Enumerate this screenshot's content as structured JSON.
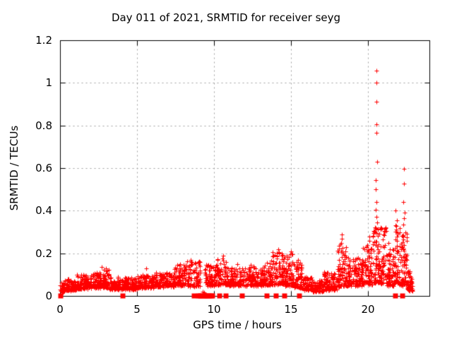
{
  "title": "Day 011 of 2021, SRMTID for receiver seyg",
  "chart_data": {
    "type": "scatter",
    "title": "Day 011 of 2021, SRMTID for receiver seyg",
    "xlabel": "GPS time / hours",
    "ylabel": "SRMTID / TECUs",
    "xlim": [
      0,
      24
    ],
    "ylim": [
      0,
      1.2
    ],
    "xticks": [
      0,
      5,
      10,
      15,
      20
    ],
    "xticklabels": [
      "0",
      "5",
      "10",
      "15",
      "20"
    ],
    "yticks": [
      0,
      0.2,
      0.4,
      0.6,
      0.8,
      1,
      1.2
    ],
    "yticklabels": [
      "0",
      "0.2",
      "0.4",
      "0.6",
      "0.8",
      "1",
      "1.2"
    ],
    "grid": true,
    "legend": "none",
    "marker": "plus",
    "zero_marker": "filled-square",
    "marker_color": "#ff0000",
    "grid_color": "#9f9f9f",
    "axis_color": "#000000",
    "background_color": "#ffffff",
    "series_name": "SRMTID",
    "bands": [
      {
        "t0": 0.0,
        "t1": 0.3,
        "n": 40,
        "base": 0.02,
        "spread": 0.045
      },
      {
        "t0": 0.3,
        "t1": 1.1,
        "n": 100,
        "base": 0.028,
        "spread": 0.05
      },
      {
        "t0": 1.1,
        "t1": 1.8,
        "n": 90,
        "base": 0.035,
        "spread": 0.065
      },
      {
        "t0": 1.8,
        "t1": 2.6,
        "n": 100,
        "base": 0.04,
        "spread": 0.07
      },
      {
        "t0": 2.6,
        "t1": 3.2,
        "n": 70,
        "base": 0.04,
        "spread": 0.085
      },
      {
        "t0": 3.2,
        "t1": 5.0,
        "n": 210,
        "base": 0.032,
        "spread": 0.055
      },
      {
        "t0": 5.0,
        "t1": 6.1,
        "n": 130,
        "base": 0.038,
        "spread": 0.06
      },
      {
        "t0": 6.1,
        "t1": 7.4,
        "n": 150,
        "base": 0.045,
        "spread": 0.065
      },
      {
        "t0": 7.4,
        "t1": 8.2,
        "n": 100,
        "base": 0.05,
        "spread": 0.095
      },
      {
        "t0": 8.2,
        "t1": 9.1,
        "n": 90,
        "base": 0.045,
        "spread": 0.12
      },
      {
        "t0": 9.4,
        "t1": 10.1,
        "n": 80,
        "base": 0.05,
        "spread": 0.1
      },
      {
        "t0": 10.1,
        "t1": 10.8,
        "n": 80,
        "base": 0.055,
        "spread": 0.125
      },
      {
        "t0": 10.8,
        "t1": 13.2,
        "n": 280,
        "base": 0.05,
        "spread": 0.085
      },
      {
        "t0": 13.2,
        "t1": 13.7,
        "n": 60,
        "base": 0.05,
        "spread": 0.1
      },
      {
        "t0": 13.7,
        "t1": 14.5,
        "n": 95,
        "base": 0.055,
        "spread": 0.15
      },
      {
        "t0": 14.5,
        "t1": 15.2,
        "n": 85,
        "base": 0.05,
        "spread": 0.15
      },
      {
        "t0": 15.2,
        "t1": 15.8,
        "n": 70,
        "base": 0.04,
        "spread": 0.12
      },
      {
        "t0": 15.8,
        "t1": 16.4,
        "n": 70,
        "base": 0.03,
        "spread": 0.06
      },
      {
        "t0": 16.4,
        "t1": 17.1,
        "n": 85,
        "base": 0.022,
        "spread": 0.05
      },
      {
        "t0": 17.1,
        "t1": 18.0,
        "n": 110,
        "base": 0.03,
        "spread": 0.08
      },
      {
        "t0": 18.0,
        "t1": 18.6,
        "n": 80,
        "base": 0.045,
        "spread": 0.2
      },
      {
        "t0": 18.6,
        "t1": 19.6,
        "n": 120,
        "base": 0.05,
        "spread": 0.13
      },
      {
        "t0": 19.6,
        "t1": 20.3,
        "n": 90,
        "base": 0.055,
        "spread": 0.18
      },
      {
        "t0": 20.3,
        "t1": 21.2,
        "n": 130,
        "base": 0.06,
        "spread": 0.27
      },
      {
        "t0": 21.2,
        "t1": 21.7,
        "n": 70,
        "base": 0.05,
        "spread": 0.18
      },
      {
        "t0": 21.7,
        "t1": 22.1,
        "n": 60,
        "base": 0.055,
        "spread": 0.28
      },
      {
        "t0": 22.1,
        "t1": 22.55,
        "n": 70,
        "base": 0.05,
        "spread": 0.27
      },
      {
        "t0": 22.55,
        "t1": 22.9,
        "n": 60,
        "base": 0.025,
        "spread": 0.09
      }
    ],
    "outliers": [
      [
        20.55,
        1.056
      ],
      [
        20.55,
        1.0
      ],
      [
        20.57,
        0.91
      ],
      [
        20.55,
        0.805
      ],
      [
        20.56,
        0.765
      ],
      [
        20.6,
        0.63
      ],
      [
        20.5,
        0.545
      ],
      [
        20.52,
        0.5
      ],
      [
        20.55,
        0.44
      ],
      [
        20.5,
        0.405
      ],
      [
        20.55,
        0.37
      ],
      [
        20.6,
        0.345
      ],
      [
        20.63,
        0.31
      ],
      [
        20.47,
        0.3
      ],
      [
        22.35,
        0.597
      ],
      [
        22.33,
        0.527
      ],
      [
        22.32,
        0.44
      ],
      [
        22.38,
        0.39
      ],
      [
        22.36,
        0.365
      ],
      [
        22.3,
        0.335
      ],
      [
        22.42,
        0.3
      ],
      [
        22.28,
        0.285
      ],
      [
        21.82,
        0.4
      ],
      [
        21.88,
        0.355
      ],
      [
        21.8,
        0.33
      ],
      [
        21.93,
        0.3
      ],
      [
        21.35,
        0.25
      ],
      [
        21.45,
        0.22
      ],
      [
        18.3,
        0.29
      ],
      [
        18.33,
        0.27
      ],
      [
        18.28,
        0.248
      ],
      [
        18.35,
        0.225
      ],
      [
        18.31,
        0.205
      ],
      [
        20.08,
        0.28
      ],
      [
        20.12,
        0.26
      ],
      [
        19.95,
        0.24
      ],
      [
        14.2,
        0.218
      ],
      [
        14.24,
        0.2
      ],
      [
        15.0,
        0.21
      ],
      [
        15.04,
        0.195
      ],
      [
        15.45,
        0.17
      ],
      [
        10.6,
        0.19
      ],
      [
        10.55,
        0.175
      ],
      [
        8.5,
        0.17
      ],
      [
        7.8,
        0.15
      ],
      [
        11.5,
        0.15
      ],
      [
        12.4,
        0.145
      ],
      [
        13.45,
        0.155
      ],
      [
        2.7,
        0.135
      ],
      [
        5.6,
        0.13
      ],
      [
        3.0,
        0.13
      ],
      [
        9.25,
        0.02
      ],
      [
        9.35,
        0.015
      ]
    ],
    "zero_markers": [
      0.05,
      4.1,
      8.7,
      9.0,
      9.1,
      9.2,
      9.3,
      9.4,
      9.5,
      9.6,
      9.7,
      9.8,
      9.9,
      10.35,
      10.8,
      11.85,
      13.45,
      14.05,
      14.6,
      15.55,
      21.8,
      22.25
    ]
  }
}
